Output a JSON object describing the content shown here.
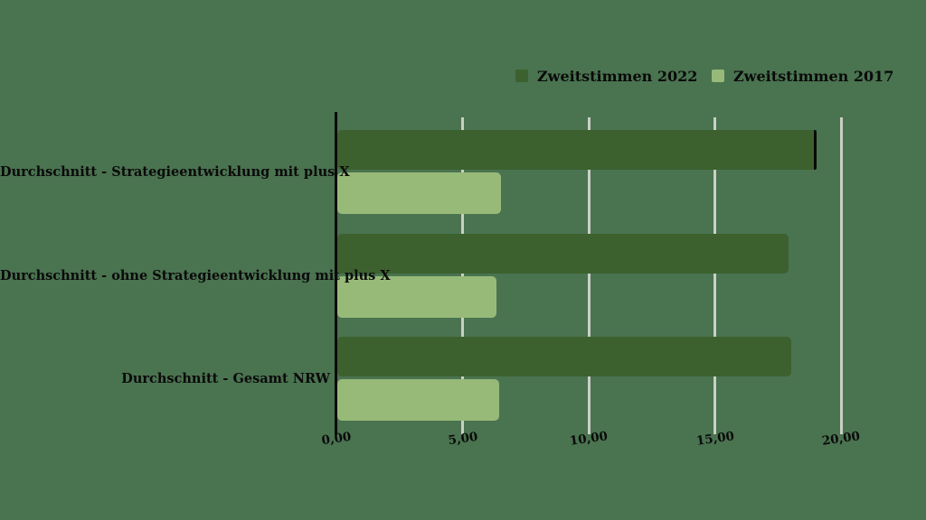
{
  "background_color": "#4a7350",
  "text_color": "#0a0a0a",
  "axis_color": "#0a0a0a",
  "gridline_color": "#c9cfc5",
  "chart_data": {
    "type": "bar",
    "orientation": "horizontal",
    "title": "",
    "xlabel": "",
    "ylabel": "",
    "categories": [
      "Durchschnitt - Strategieentwicklung mit plus X",
      "Durchschnitt - ohne Strategieentwicklung mit plus X",
      "Durchschnitt - Gesamt NRW"
    ],
    "series": [
      {
        "name": "Zweitstimmen 2022",
        "color": "#3c612e",
        "values": [
          18.9,
          17.9,
          18.0
        ]
      },
      {
        "name": "Zweitstimmen 2017",
        "color": "#97ba79",
        "values": [
          6.5,
          6.3,
          6.4
        ]
      }
    ],
    "xlim": [
      0,
      20
    ],
    "x_tick_values": [
      0,
      5,
      10,
      15,
      20
    ],
    "x_tick_labels": [
      "0,00",
      "5,00",
      "10,00",
      "15,00",
      "20,00"
    ],
    "grid": "vertical-gridlines-behind-bars",
    "legend_position": "top-center-right",
    "annotations": [
      {
        "type": "black-end-line",
        "series": 0,
        "category": 0
      }
    ]
  }
}
